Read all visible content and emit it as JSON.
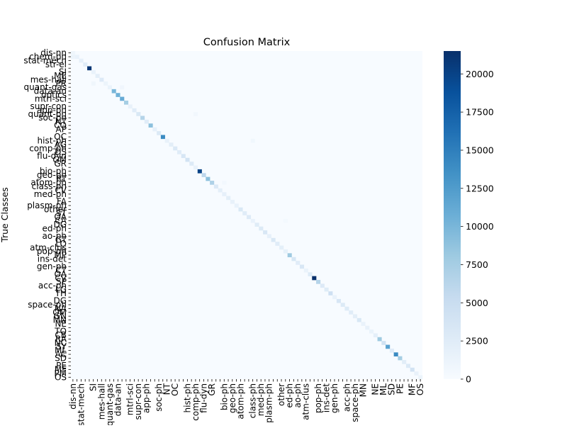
{
  "chart_data": {
    "type": "heatmap",
    "title": "Confusion Matrix",
    "xlabel": "",
    "ylabel": "True Classes",
    "n_classes": 86,
    "visible_row_labels": [
      "dis-nn",
      "chem-ph",
      "stat-mech",
      "str-el",
      "SI",
      "ME",
      "mes-hall",
      "PR",
      "quant-gas",
      "data-an",
      "optics",
      "mtrl-sci",
      "supr-con",
      "app-ph",
      "quant-ph",
      "soc-ph",
      "NT",
      "CO",
      "AP",
      "OC",
      "hist-ph",
      "AG",
      "comp-ph",
      "DS",
      "flu-dyn",
      "GM",
      "GR",
      "bio-ph",
      "geo-ph",
      "RT",
      "atom-ph",
      "class-ph",
      "CV",
      "med-ph",
      "FA",
      "plasm-ph",
      "other",
      "ST",
      "QA",
      "CA",
      "DG",
      "ed-ph",
      "ao-ph",
      "GT",
      "LO",
      "atm-clus",
      "pop-ph",
      "MP",
      "ins-det",
      "gen-ph",
      "CT",
      "OA",
      "CV",
      "SP",
      "acc-ph",
      "LG",
      "TH",
      "DG",
      "space-ph",
      "NA",
      "QM",
      "GN",
      "MN",
      "NE",
      "TO",
      "CB",
      "RA",
      "NC",
      "SY",
      "ML",
      "AC",
      "SD",
      "PE",
      "MF",
      "PM",
      "OS"
    ],
    "visible_col_labels": [
      "dis-nn",
      "stat-mech",
      "SI",
      "mes-hall",
      "quant-gas",
      "data-an",
      "mtrl-sci",
      "supr-con",
      "app-ph",
      "soc-ph",
      "NT",
      "OC",
      "hist-ph",
      "comp-ph",
      "flu-dyn",
      "GR",
      "bio-ph",
      "geo-ph",
      "atom-ph",
      "class-ph",
      "med-ph",
      "plasm-ph",
      "other",
      "ed-ph",
      "ao-ph",
      "atm-clus",
      "pop-ph",
      "ins-det",
      "gen-ph",
      "acc-ph",
      "space-ph",
      "MN",
      "NE",
      "ML",
      "SD",
      "PE",
      "MF",
      "OS"
    ],
    "diagonal_values": [
      900,
      1500,
      1800,
      2500,
      21000,
      1500,
      2200,
      2800,
      1200,
      1400,
      10000,
      10500,
      11000,
      7500,
      1600,
      2500,
      3200,
      6500,
      2500,
      9000,
      1800,
      3000,
      14000,
      1600,
      2200,
      3000,
      2500,
      3500,
      4000,
      2800,
      1500,
      20000,
      6000,
      9000,
      7000,
      3000,
      2000,
      1800,
      2200,
      1600,
      1500,
      3200,
      2500,
      2800,
      1500,
      2600,
      2900,
      3400,
      1800,
      3200,
      2500,
      2000,
      1700,
      8000,
      3600,
      2500,
      3400,
      1400,
      2700,
      21500,
      6500,
      2800,
      2600,
      4500,
      1500,
      3500,
      2900,
      2700,
      2500,
      2200,
      3400,
      1500,
      1600,
      1400,
      2000,
      8000,
      4200,
      12000,
      2500,
      14000,
      7500,
      2400,
      3000,
      4000,
      1600,
      1200
    ],
    "off_diagonal": [
      {
        "row": 1,
        "col": 0,
        "value": 1200
      },
      {
        "row": 8,
        "col": 5,
        "value": 900
      },
      {
        "row": 9,
        "col": 12,
        "value": 800
      },
      {
        "row": 16,
        "col": 30,
        "value": 600
      },
      {
        "row": 23,
        "col": 44,
        "value": 700
      },
      {
        "row": 34,
        "col": 37,
        "value": 500
      },
      {
        "row": 44,
        "col": 52,
        "value": 400
      }
    ],
    "colorbar": {
      "vmin": 0,
      "vmax": 21500,
      "ticks": [
        "0",
        "2500",
        "5000",
        "7500",
        "10000",
        "12500",
        "15000",
        "17500",
        "20000"
      ],
      "tick_values": [
        0,
        2500,
        5000,
        7500,
        10000,
        12500,
        15000,
        17500,
        20000
      ],
      "colormap": "Blues"
    },
    "grid": false
  }
}
